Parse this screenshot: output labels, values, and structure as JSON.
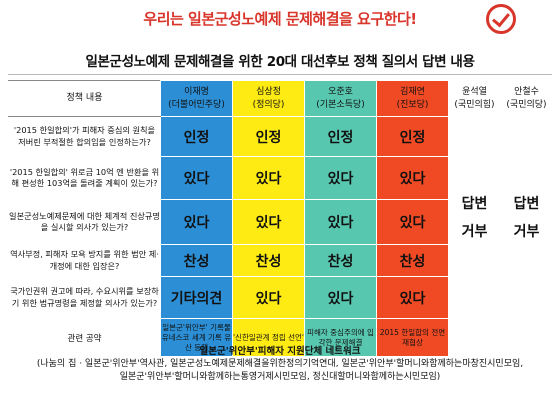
{
  "header": {
    "slogan": "우리는 일본군성노예제 문제해결을 요구한다!",
    "title": "일본군성노예제 문제해결을 위한 20대 대선후보 정책 질의서 답변 내용"
  },
  "table": {
    "topic_header": "정책 내용",
    "candidates": [
      {
        "name": "이재명",
        "party": "(더불어민주당)"
      },
      {
        "name": "심상정",
        "party": "(정의당)"
      },
      {
        "name": "오준호",
        "party": "(기본소득당)"
      },
      {
        "name": "김재연",
        "party": "(진보당)"
      },
      {
        "name": "윤석열",
        "party": "(국민의힘)"
      },
      {
        "name": "안철수",
        "party": "(국민의당)"
      }
    ],
    "rows": [
      {
        "question": "'2015 한일합의'가 피해자 중심의 원칙을 저버린 부적절한 합의임을 인정하는가?",
        "answers": [
          "인정",
          "인정",
          "인정",
          "인정"
        ]
      },
      {
        "question": "'2015 한일합의' 위로금 10억 엔 반환을 위해 편성한 103억을 돌려줄 계획이 있는가?",
        "answers": [
          "있다",
          "있다",
          "있다",
          "있다"
        ]
      },
      {
        "question": "일본군성노예제문제에 대한 체계적 진상규명을 실시할 의사가 있는가?",
        "answers": [
          "있다",
          "있다",
          "있다",
          "있다"
        ]
      },
      {
        "question": "역사부정, 피해자 모욕 방지를 위한 법안 제·개정에 대한 입장은?",
        "answers": [
          "찬성",
          "찬성",
          "찬성",
          "찬성"
        ]
      },
      {
        "question": "국가인권위 권고에 따라, 수요시위를 보장하기 위한 법규명령을 제정할 의사가 있는가?",
        "answers": [
          "기타의견",
          "있다",
          "있다",
          "있다"
        ]
      }
    ],
    "refuse_text": [
      "답변",
      "거부"
    ],
    "pledge_label": "관련 공약",
    "pledges": [
      "일본군'위안부' 기록물 유네스코 세계 기록 유산 등재",
      "'신한일관계 정립 선언'",
      "피해자 중심주의에 입각한 문제해결",
      "2015 한일합의 전면 재협상"
    ]
  },
  "footer": {
    "title": "일본군'위안부'피해자 지원단체 네트워크",
    "line1": "(나눔의 집 · 일본군'위안부'역사관, 일본군성노예제문제해결을위한정의기억연대, 일본군'위안부'할머니와함께하는마창진시민모임,",
    "line2": "일본군'위안부'할머니와함께하는통영거제시민모임, 정신대할머니와함께하는시민모임)"
  },
  "colors": {
    "lee": "#2c8fd6",
    "sim": "#ffeb14",
    "oh": "#58c7b0",
    "kim": "#f04a25",
    "accent": "#d8352b"
  },
  "icons": {
    "logo": "ballot-check-icon"
  }
}
